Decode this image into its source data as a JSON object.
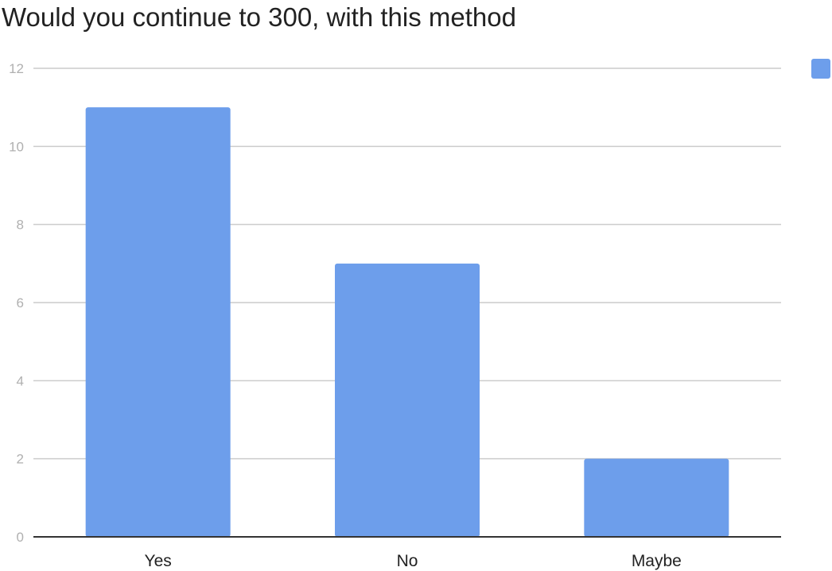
{
  "chart_data": {
    "type": "bar",
    "title": "Would you continue to 300, with this method",
    "categories": [
      "Yes",
      "No",
      "Maybe"
    ],
    "values": [
      11,
      7,
      2
    ],
    "yticks": [
      0,
      2,
      4,
      6,
      8,
      10,
      12
    ],
    "ylim": [
      0,
      12
    ],
    "xlabel": "",
    "ylabel": "",
    "grid": true,
    "legend": "top-right",
    "bar_color": "#6d9eeb",
    "grid_color": "#cccccc",
    "axis_color": "#333333"
  }
}
